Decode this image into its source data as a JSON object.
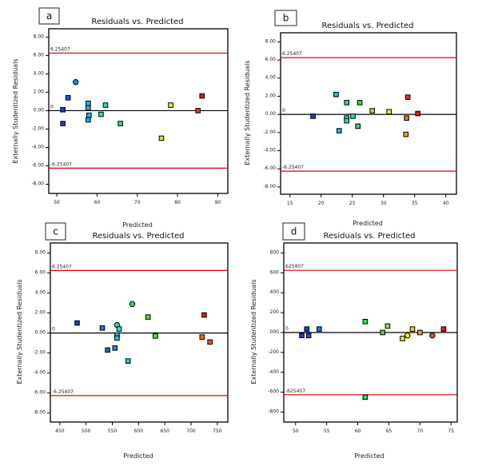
{
  "chart_data": [
    {
      "type": "scatter",
      "panel": "a",
      "title": "Residuals vs. Predicted",
      "xlabel": "Predicted",
      "ylabel": "Externally Studentized Residuals",
      "xlim": [
        48,
        92.5
      ],
      "ylim": [
        -9.0,
        8.9
      ],
      "xticks": [
        50,
        60,
        70,
        80,
        90
      ],
      "xtick_labels": [
        "50",
        "60",
        "70",
        "80",
        "90"
      ],
      "yticks": [
        8,
        6,
        4,
        2,
        0,
        -2,
        -4,
        -6,
        -8
      ],
      "ytick_labels": [
        "8.00",
        "6.00",
        "4.00",
        "2.00",
        "0.00",
        "-2.00",
        "-4.00",
        "-6.00",
        "-8.00"
      ],
      "reference_lines": [
        {
          "value": 6.25407,
          "label": "6.25407",
          "color": "#e00000"
        },
        {
          "value": 0,
          "label": "0",
          "color": "#000000"
        },
        {
          "value": -6.25407,
          "label": "-6.25407",
          "color": "#e00000"
        }
      ],
      "points": [
        {
          "x": 51.5,
          "y": 0.1,
          "color": "#1a3fcf",
          "shape": "square"
        },
        {
          "x": 51.5,
          "y": -1.4,
          "color": "#1a3fcf",
          "shape": "square"
        },
        {
          "x": 52.8,
          "y": 1.4,
          "color": "#1f58d8",
          "shape": "square"
        },
        {
          "x": 54.7,
          "y": 3.1,
          "color": "#1e90e8",
          "shape": "circle"
        },
        {
          "x": 57.8,
          "y": 0.8,
          "color": "#18b8e8",
          "shape": "square"
        },
        {
          "x": 57.8,
          "y": 0.3,
          "color": "#18b8e8",
          "shape": "square"
        },
        {
          "x": 58.0,
          "y": -0.5,
          "color": "#18b8e8",
          "shape": "square"
        },
        {
          "x": 57.8,
          "y": -1.0,
          "color": "#18b0e8",
          "shape": "square"
        },
        {
          "x": 61.0,
          "y": -0.4,
          "color": "#2ee0c8",
          "shape": "square"
        },
        {
          "x": 62.1,
          "y": 0.6,
          "color": "#2ee0a0",
          "shape": "square"
        },
        {
          "x": 65.8,
          "y": -1.4,
          "color": "#28e070",
          "shape": "square"
        },
        {
          "x": 76.0,
          "y": -3.0,
          "color": "#b8f020",
          "shape": "square"
        },
        {
          "x": 78.3,
          "y": 0.6,
          "color": "#f0e820",
          "shape": "square"
        },
        {
          "x": 85.1,
          "y": 0.0,
          "color": "#e04020",
          "shape": "square"
        },
        {
          "x": 86.1,
          "y": 1.6,
          "color": "#e81818",
          "shape": "square"
        }
      ]
    },
    {
      "type": "scatter",
      "panel": "b",
      "title": "Residuals vs. Predicted",
      "xlabel": "Predicted",
      "ylabel": "Externally Studentized Residuals",
      "xlim": [
        13.5,
        41.7
      ],
      "ylim": [
        -8.8,
        9.0
      ],
      "xticks": [
        15,
        20,
        25,
        30,
        35,
        40
      ],
      "xtick_labels": [
        "15",
        "20",
        "25",
        "30",
        "35",
        "40"
      ],
      "yticks": [
        8,
        6,
        4,
        2,
        0,
        -2,
        -4,
        -6,
        -8
      ],
      "ytick_labels": [
        "8.00",
        "6.00",
        "4.00",
        "2.00",
        "0.00",
        "-2.00",
        "-4.00",
        "-6.00",
        "-8.00"
      ],
      "reference_lines": [
        {
          "value": 6.25407,
          "label": "6.25407",
          "color": "#e00000"
        },
        {
          "value": 0,
          "label": "0",
          "color": "#000000"
        },
        {
          "value": -6.25407,
          "label": "-6.25407",
          "color": "#e00000"
        }
      ],
      "points": [
        {
          "x": 18.7,
          "y": -0.2,
          "color": "#1a3fcf",
          "shape": "square"
        },
        {
          "x": 22.4,
          "y": 2.2,
          "color": "#18c8e0",
          "shape": "square"
        },
        {
          "x": 22.9,
          "y": -1.8,
          "color": "#18b8e8",
          "shape": "square"
        },
        {
          "x": 24.1,
          "y": 1.3,
          "color": "#28e070",
          "shape": "square"
        },
        {
          "x": 24.1,
          "y": -0.4,
          "color": "#2ee0c8",
          "shape": "square"
        },
        {
          "x": 24.1,
          "y": -0.7,
          "color": "#2ee0c8",
          "shape": "square"
        },
        {
          "x": 25.1,
          "y": -0.2,
          "color": "#2ee0a0",
          "shape": "square"
        },
        {
          "x": 25.9,
          "y": -1.3,
          "color": "#28e070",
          "shape": "square"
        },
        {
          "x": 26.2,
          "y": 1.3,
          "color": "#30e030",
          "shape": "square"
        },
        {
          "x": 28.2,
          "y": 0.4,
          "color": "#98e830",
          "shape": "square"
        },
        {
          "x": 30.9,
          "y": 0.3,
          "color": "#f0f020",
          "shape": "square"
        },
        {
          "x": 33.7,
          "y": -0.4,
          "color": "#f07018",
          "shape": "square"
        },
        {
          "x": 33.6,
          "y": -2.2,
          "color": "#f0a020",
          "shape": "square"
        },
        {
          "x": 33.9,
          "y": 1.9,
          "color": "#e83018",
          "shape": "square"
        },
        {
          "x": 35.5,
          "y": 0.1,
          "color": "#e81818",
          "shape": "square"
        }
      ]
    },
    {
      "type": "scatter",
      "panel": "c",
      "title": "Residuals vs. Predicted",
      "xlabel": "Predicted",
      "ylabel": "Externally Studentized Residuals",
      "xlim": [
        432,
        770
      ],
      "ylim": [
        -8.9,
        9.0
      ],
      "xticks": [
        450,
        500,
        550,
        600,
        650,
        700,
        750
      ],
      "xtick_labels": [
        "450",
        "500",
        "550",
        "600",
        "650",
        "700",
        "750"
      ],
      "yticks": [
        8,
        6,
        4,
        2,
        0,
        -2,
        -4,
        -6,
        -8
      ],
      "ytick_labels": [
        "8.00",
        "6.00",
        "4.00",
        "2.00",
        "0.00",
        "-2.00",
        "-4.00",
        "-6.00",
        "-8.00"
      ],
      "reference_lines": [
        {
          "value": 6.25407,
          "label": "6.25407",
          "color": "#e00000"
        },
        {
          "value": 0,
          "label": "0",
          "color": "#000000"
        },
        {
          "value": -6.25407,
          "label": "-6.25407",
          "color": "#e00000"
        }
      ],
      "points": [
        {
          "x": 483,
          "y": 1.0,
          "color": "#1a3fcf",
          "shape": "square"
        },
        {
          "x": 531,
          "y": 0.5,
          "color": "#1e78e0",
          "shape": "square"
        },
        {
          "x": 541,
          "y": -1.7,
          "color": "#1e68d8",
          "shape": "square"
        },
        {
          "x": 555,
          "y": -1.5,
          "color": "#1e90e8",
          "shape": "square"
        },
        {
          "x": 559,
          "y": 0.8,
          "color": "#2ee0b0",
          "shape": "circle"
        },
        {
          "x": 563,
          "y": 0.4,
          "color": "#2ee0d0",
          "shape": "square"
        },
        {
          "x": 559,
          "y": -0.2,
          "color": "#18c8e8",
          "shape": "square"
        },
        {
          "x": 559,
          "y": -0.5,
          "color": "#18c8e8",
          "shape": "square"
        },
        {
          "x": 580,
          "y": -2.8,
          "color": "#18c8e8",
          "shape": "square"
        },
        {
          "x": 588,
          "y": 2.9,
          "color": "#28e050",
          "shape": "circle"
        },
        {
          "x": 618,
          "y": 1.6,
          "color": "#50e030",
          "shape": "square"
        },
        {
          "x": 632,
          "y": -0.3,
          "color": "#58e030",
          "shape": "square"
        },
        {
          "x": 721,
          "y": -0.4,
          "color": "#f07018",
          "shape": "square"
        },
        {
          "x": 725,
          "y": 1.8,
          "color": "#e81818",
          "shape": "square"
        },
        {
          "x": 736,
          "y": -0.9,
          "color": "#f05018",
          "shape": "square"
        }
      ]
    },
    {
      "type": "scatter",
      "panel": "d",
      "title": "Residuals vs. Predicted",
      "xlabel": "Predicted",
      "ylabel": "Externally Studentized Residuals",
      "xlim": [
        48.1,
        76.0
      ],
      "ylim": [
        -900,
        900
      ],
      "xticks": [
        50,
        55,
        60,
        65,
        70,
        75
      ],
      "xtick_labels": [
        "50",
        "55",
        "60",
        "65",
        "70",
        "75"
      ],
      "yticks": [
        800,
        600,
        400,
        200,
        0,
        -200,
        -400,
        -600,
        -800
      ],
      "ytick_labels": [
        "800",
        "600",
        "400",
        "200",
        "000",
        "-200",
        "-400",
        "-600",
        "-800"
      ],
      "reference_lines": [
        {
          "value": 625.407,
          "label": "625407",
          "color": "#e00000"
        },
        {
          "value": 0,
          "label": "0",
          "color": "#000000"
        },
        {
          "value": -625.407,
          "label": "-625407",
          "color": "#e00000"
        }
      ],
      "points": [
        {
          "x": 51.0,
          "y": -30,
          "color": "#1a3fcf",
          "shape": "square"
        },
        {
          "x": 51.8,
          "y": 35,
          "color": "#1a3fcf",
          "shape": "square"
        },
        {
          "x": 52.1,
          "y": -30,
          "color": "#1a50d8",
          "shape": "square"
        },
        {
          "x": 53.8,
          "y": 35,
          "color": "#1e78e0",
          "shape": "square"
        },
        {
          "x": 61.2,
          "y": 110,
          "color": "#28e050",
          "shape": "square"
        },
        {
          "x": 61.2,
          "y": -650,
          "color": "#28e070",
          "shape": "square"
        },
        {
          "x": 64.0,
          "y": 0,
          "color": "#40e040",
          "shape": "square"
        },
        {
          "x": 64.8,
          "y": 65,
          "color": "#90e830",
          "shape": "square"
        },
        {
          "x": 67.2,
          "y": -60,
          "color": "#e8f020",
          "shape": "square"
        },
        {
          "x": 68.0,
          "y": -30,
          "color": "#f0f020",
          "shape": "circle"
        },
        {
          "x": 68.8,
          "y": 35,
          "color": "#f0d020",
          "shape": "square"
        },
        {
          "x": 70.0,
          "y": 0,
          "color": "#f0a020",
          "shape": "square"
        },
        {
          "x": 72.0,
          "y": -30,
          "color": "#f05018",
          "shape": "circle"
        },
        {
          "x": 73.8,
          "y": 35,
          "color": "#e81818",
          "shape": "square"
        }
      ]
    }
  ],
  "panels": [
    {
      "letter": "a"
    },
    {
      "letter": "b"
    },
    {
      "letter": "c"
    },
    {
      "letter": "d"
    }
  ]
}
